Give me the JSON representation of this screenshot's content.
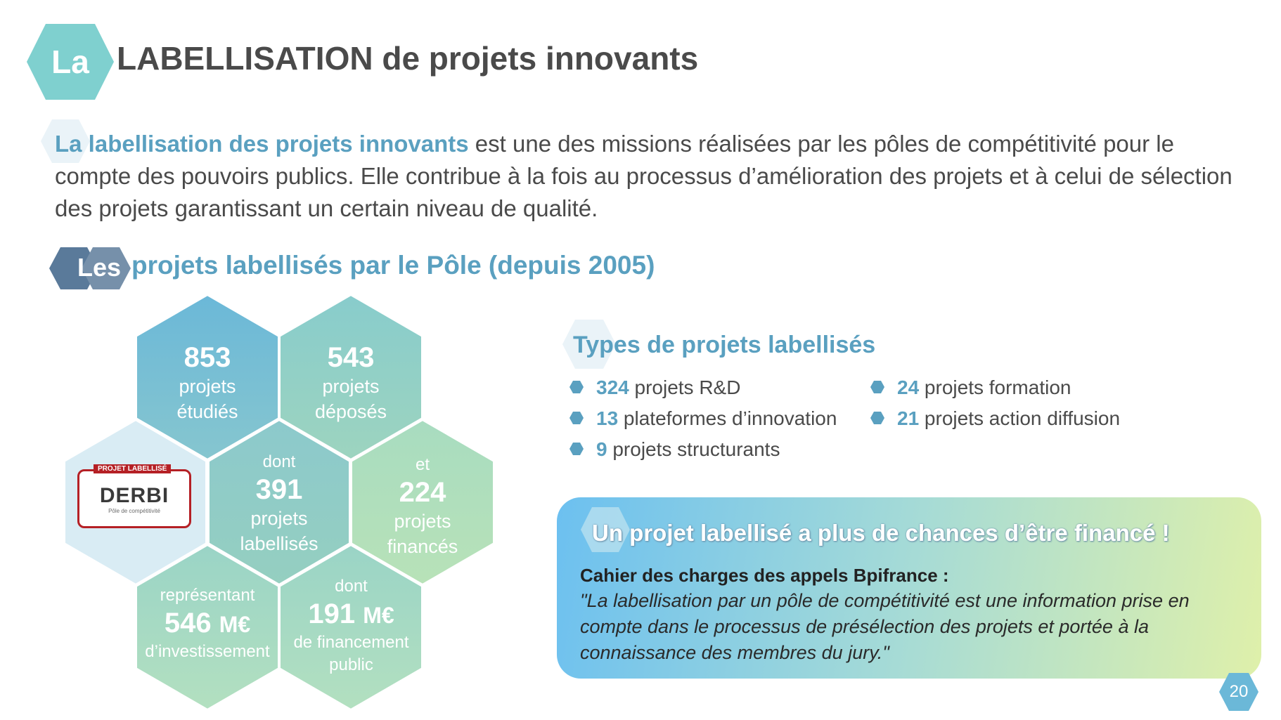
{
  "header": {
    "badge": "La",
    "title": "LABELLISATION de projets innovants"
  },
  "intro": {
    "highlight": "La labellisation des projets innovants",
    "text": " est une des missions réalisées par les pôles de compétitivité pour le compte des pouvoirs publics. Elle contribue à la fois au processus d’amélioration des projets et à celui de sélection des projets garantissant un certain niveau de qualité."
  },
  "section": {
    "badge": "Les",
    "title": "projets labellisés par le Pôle (depuis 2005)"
  },
  "stats": {
    "etudies": {
      "value": "853",
      "line1": "projets",
      "line2": "étudiés"
    },
    "deposes": {
      "value": "543",
      "line1": "projets",
      "line2": "déposés"
    },
    "labellises": {
      "prefix": "dont",
      "value": "391",
      "line1": "projets",
      "line2": "labellisés"
    },
    "finances": {
      "prefix": "et",
      "value": "224",
      "line1": "projets",
      "line2": "financés"
    },
    "investissement": {
      "prefix": "représentant",
      "value": "546",
      "unit": "M€",
      "line1": "d’investissement"
    },
    "financement": {
      "prefix": "dont",
      "value": "191",
      "unit": "M€",
      "line1": "de financement",
      "line2": "public"
    }
  },
  "logo": {
    "top": "PROJET LABELLISÉ",
    "name": "DERBI",
    "sub": "Pôle de compétitivité"
  },
  "types": {
    "title": "Types de projets labellisés",
    "items": [
      {
        "num": "324",
        "text": " projets R&D"
      },
      {
        "num": "13",
        "text": " plateformes d’innovation"
      },
      {
        "num": "9",
        "text": " projets structurants"
      },
      {
        "num": "24",
        "text": " projets formation"
      },
      {
        "num": "21",
        "text": " projets action diffusion"
      }
    ]
  },
  "callout": {
    "title": "Un projet labellisé a plus de chances d’être financé !",
    "heading": "Cahier des charges des appels Bpifrance :",
    "quote": "\"La labellisation par un pôle de compétitivité est une information prise en compte dans le processus de présélection des projets et portée à la connaissance des membres du jury.\""
  },
  "page_number": "20",
  "colors": {
    "accent": "#5aa0c0",
    "title_hex": "#7fd0cf",
    "subtitle_hex": "#5a7a9a",
    "bullet": "#5aa0c0"
  }
}
